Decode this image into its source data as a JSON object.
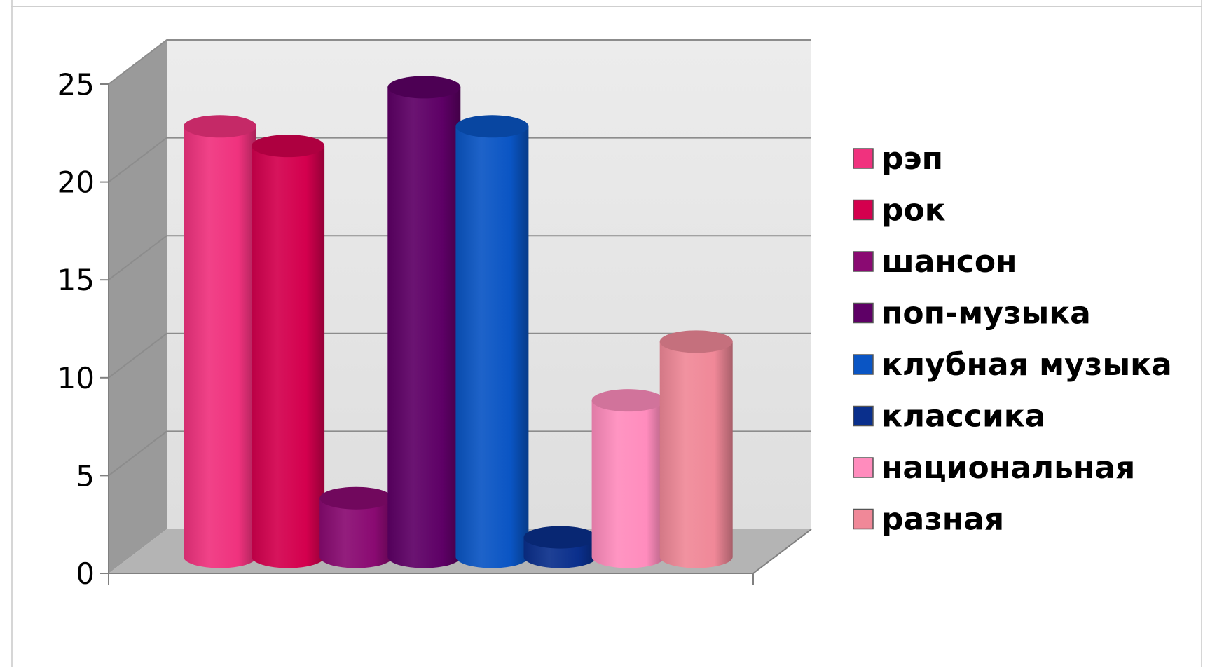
{
  "chart_data": {
    "type": "bar",
    "title": "",
    "xlabel": "",
    "ylabel": "",
    "ylim": [
      0,
      25
    ],
    "yticks": [
      "0",
      "5",
      "10",
      "15",
      "20",
      "25"
    ],
    "grid": true,
    "legend_position": "right",
    "series": [
      {
        "name": "рэп",
        "value": 22,
        "color": "#f0327e"
      },
      {
        "name": "рок",
        "value": 21,
        "color": "#d4004e"
      },
      {
        "name": "шансон",
        "value": 3,
        "color": "#8a0a72"
      },
      {
        "name": "поп-музыка",
        "value": 24,
        "color": "#5e0066"
      },
      {
        "name": "клубная музыка",
        "value": 22,
        "color": "#0a55c4"
      },
      {
        "name": "классика",
        "value": 1,
        "color": "#0a2f8c"
      },
      {
        "name": "национальная",
        "value": 8,
        "color": "#ff8cbd"
      },
      {
        "name": "разная",
        "value": 11,
        "color": "#f08898"
      }
    ]
  }
}
